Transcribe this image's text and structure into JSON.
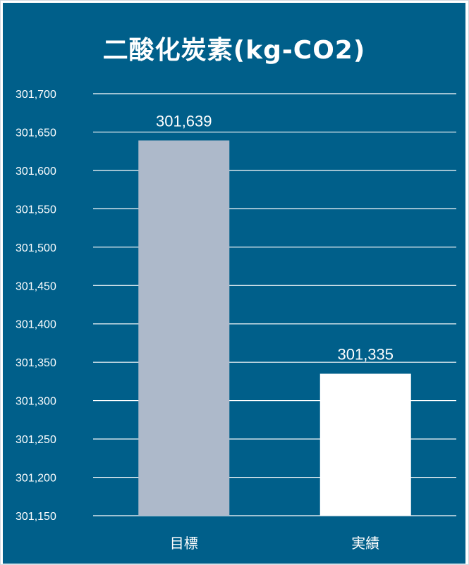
{
  "chart_data": {
    "type": "bar",
    "title": "二酸化炭素(kg-CO2)",
    "categories": [
      "目標",
      "実績"
    ],
    "values": [
      301639,
      301335
    ],
    "data_labels": [
      "301,639",
      "301,335"
    ],
    "ylim": [
      301150,
      301700
    ],
    "yticks": [
      301150,
      301200,
      301250,
      301300,
      301350,
      301400,
      301450,
      301500,
      301550,
      301600,
      301650,
      301700
    ],
    "ytick_labels": [
      "301,150",
      "301,200",
      "301,250",
      "301,300",
      "301,350",
      "301,400",
      "301,450",
      "301,500",
      "301,550",
      "301,600",
      "301,650",
      "301,700"
    ],
    "grid": true,
    "xlabel": "",
    "ylabel": ""
  },
  "colors": {
    "background": "#005f8a",
    "bars": [
      "#adb9ca",
      "#ffffff"
    ],
    "text": "#ffffff",
    "grid": "#ffffff"
  }
}
